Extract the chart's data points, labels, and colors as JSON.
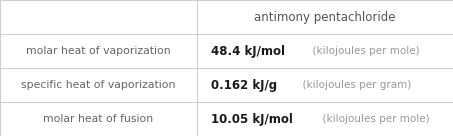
{
  "title": "antimony pentachloride",
  "rows": [
    {
      "label": "molar heat of vaporization",
      "value_bold": "48.4 kJ/mol",
      "value_light": "  (kilojoules per mole)"
    },
    {
      "label": "specific heat of vaporization",
      "value_bold": "0.162 kJ/g",
      "value_light": "  (kilojoules per gram)"
    },
    {
      "label": "molar heat of fusion",
      "value_bold": "10.05 kJ/mol",
      "value_light": "  (kilojoules per mole)"
    }
  ],
  "col_split": 0.435,
  "background_color": "#ffffff",
  "header_text_color": "#555555",
  "label_text_color": "#666666",
  "value_bold_color": "#1a1a1a",
  "value_light_color": "#999999",
  "grid_color": "#cccccc",
  "header_font_size": 8.5,
  "label_font_size": 7.8,
  "value_bold_font_size": 8.5,
  "value_light_font_size": 7.5,
  "fig_width": 4.53,
  "fig_height": 1.36,
  "dpi": 100
}
